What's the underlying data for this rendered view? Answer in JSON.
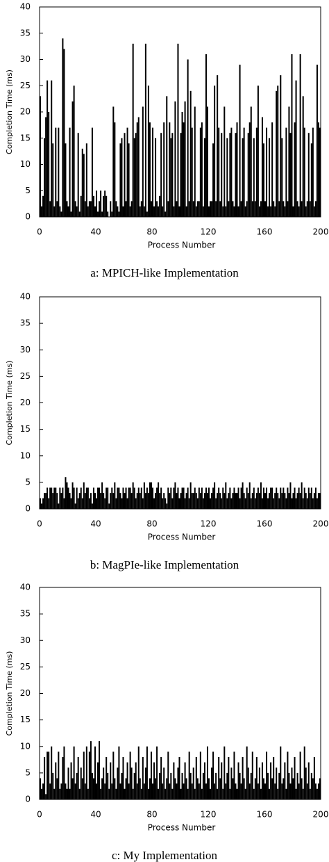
{
  "chart_data": [
    {
      "type": "bar",
      "caption": "a: MPICH-like Implementation",
      "xlabel": "Process Number",
      "ylabel": "Completion Time (ms)",
      "color": "#000000",
      "xlim": [
        0,
        200
      ],
      "xticks": [
        0,
        40,
        80,
        120,
        160,
        200
      ],
      "ylim": [
        0,
        40
      ],
      "yticks": [
        0,
        5,
        10,
        15,
        20,
        25,
        30,
        35,
        40
      ],
      "x": [
        0,
        1,
        2,
        3,
        4,
        5,
        6,
        7,
        8,
        9,
        10,
        11,
        12,
        13,
        14,
        15,
        16,
        17,
        18,
        19,
        20,
        21,
        22,
        23,
        24,
        25,
        26,
        27,
        28,
        29,
        30,
        31,
        32,
        33,
        34,
        35,
        36,
        37,
        38,
        39,
        40,
        41,
        42,
        43,
        44,
        45,
        46,
        47,
        48,
        49,
        50,
        51,
        52,
        53,
        54,
        55,
        56,
        57,
        58,
        59,
        60,
        61,
        62,
        63,
        64,
        65,
        66,
        67,
        68,
        69,
        70,
        71,
        72,
        73,
        74,
        75,
        76,
        77,
        78,
        79,
        80,
        81,
        82,
        83,
        84,
        85,
        86,
        87,
        88,
        89,
        90,
        91,
        92,
        93,
        94,
        95,
        96,
        97,
        98,
        99,
        100,
        101,
        102,
        103,
        104,
        105,
        106,
        107,
        108,
        109,
        110,
        111,
        112,
        113,
        114,
        115,
        116,
        117,
        118,
        119,
        120,
        121,
        122,
        123,
        124,
        125,
        126,
        127,
        128,
        129,
        130,
        131,
        132,
        133,
        134,
        135,
        136,
        137,
        138,
        139,
        140,
        141,
        142,
        143,
        144,
        145,
        146,
        147,
        148,
        149,
        150,
        151,
        152,
        153,
        154,
        155,
        156,
        157,
        158,
        159,
        160,
        161,
        162,
        163,
        164,
        165,
        166,
        167,
        168,
        169,
        170,
        171,
        172,
        173,
        174,
        175,
        176,
        177,
        178,
        179,
        180,
        181,
        182,
        183,
        184,
        185,
        186,
        187,
        188,
        189,
        190,
        191,
        192,
        193,
        194,
        195,
        196,
        197,
        198,
        199
      ],
      "values": [
        23,
        2,
        4,
        15,
        19,
        26,
        20,
        3,
        26,
        14,
        2,
        17,
        3,
        17,
        2,
        1,
        34,
        32,
        14,
        3,
        2,
        17,
        1,
        22,
        25,
        3,
        2,
        16,
        1,
        4,
        13,
        12,
        3,
        14,
        2,
        3,
        3,
        17,
        4,
        2,
        5,
        1,
        3,
        5,
        1,
        4,
        5,
        4,
        1,
        0,
        3,
        1,
        21,
        18,
        3,
        2,
        1,
        14,
        15,
        2,
        16,
        3,
        17,
        14,
        2,
        3,
        33,
        15,
        16,
        18,
        19,
        2,
        3,
        21,
        2,
        33,
        1,
        25,
        18,
        3,
        17,
        2,
        15,
        3,
        2,
        4,
        16,
        2,
        18,
        1,
        23,
        3,
        18,
        15,
        16,
        2,
        22,
        3,
        33,
        2,
        16,
        20,
        18,
        22,
        2,
        30,
        3,
        24,
        17,
        3,
        21,
        2,
        3,
        3,
        17,
        18,
        2,
        15,
        31,
        21,
        2,
        3,
        3,
        14,
        25,
        3,
        27,
        17,
        3,
        16,
        2,
        21,
        2,
        15,
        3,
        16,
        17,
        3,
        2,
        16,
        18,
        2,
        29,
        3,
        15,
        17,
        2,
        3,
        16,
        18,
        21,
        3,
        15,
        3,
        17,
        25,
        2,
        3,
        19,
        14,
        3,
        17,
        2,
        15,
        2,
        18,
        3,
        2,
        24,
        25,
        3,
        27,
        15,
        3,
        2,
        17,
        3,
        21,
        16,
        31,
        2,
        18,
        26,
        3,
        2,
        31,
        3,
        23,
        17,
        2,
        3,
        16,
        3,
        14,
        17,
        2,
        3,
        29,
        18,
        17
      ]
    },
    {
      "type": "bar",
      "caption": "b: MagPIe-like Implementation",
      "xlabel": "Process Number",
      "ylabel": "Completion Time (ms)",
      "color": "#000000",
      "xlim": [
        0,
        200
      ],
      "xticks": [
        0,
        40,
        80,
        120,
        160,
        200
      ],
      "ylim": [
        0,
        40
      ],
      "yticks": [
        0,
        5,
        10,
        15,
        20,
        25,
        30,
        35,
        40
      ],
      "x": [
        0,
        1,
        2,
        3,
        4,
        5,
        6,
        7,
        8,
        9,
        10,
        11,
        12,
        13,
        14,
        15,
        16,
        17,
        18,
        19,
        20,
        21,
        22,
        23,
        24,
        25,
        26,
        27,
        28,
        29,
        30,
        31,
        32,
        33,
        34,
        35,
        36,
        37,
        38,
        39,
        40,
        41,
        42,
        43,
        44,
        45,
        46,
        47,
        48,
        49,
        50,
        51,
        52,
        53,
        54,
        55,
        56,
        57,
        58,
        59,
        60,
        61,
        62,
        63,
        64,
        65,
        66,
        67,
        68,
        69,
        70,
        71,
        72,
        73,
        74,
        75,
        76,
        77,
        78,
        79,
        80,
        81,
        82,
        83,
        84,
        85,
        86,
        87,
        88,
        89,
        90,
        91,
        92,
        93,
        94,
        95,
        96,
        97,
        98,
        99,
        100,
        101,
        102,
        103,
        104,
        105,
        106,
        107,
        108,
        109,
        110,
        111,
        112,
        113,
        114,
        115,
        116,
        117,
        118,
        119,
        120,
        121,
        122,
        123,
        124,
        125,
        126,
        127,
        128,
        129,
        130,
        131,
        132,
        133,
        134,
        135,
        136,
        137,
        138,
        139,
        140,
        141,
        142,
        143,
        144,
        145,
        146,
        147,
        148,
        149,
        150,
        151,
        152,
        153,
        154,
        155,
        156,
        157,
        158,
        159,
        160,
        161,
        162,
        163,
        164,
        165,
        166,
        167,
        168,
        169,
        170,
        171,
        172,
        173,
        174,
        175,
        176,
        177,
        178,
        179,
        180,
        181,
        182,
        183,
        184,
        185,
        186,
        187,
        188,
        189,
        190,
        191,
        192,
        193,
        194,
        195,
        196,
        197,
        198,
        199
      ],
      "values": [
        2,
        1,
        2,
        3,
        3,
        4,
        2,
        4,
        4,
        3,
        4,
        4,
        3,
        1,
        4,
        3,
        4,
        2,
        6,
        5,
        4,
        3,
        2,
        5,
        4,
        1,
        4,
        2,
        3,
        4,
        2,
        5,
        3,
        4,
        4,
        2,
        3,
        1,
        4,
        3,
        2,
        4,
        4,
        3,
        5,
        3,
        2,
        4,
        4,
        1,
        3,
        4,
        3,
        5,
        2,
        4,
        4,
        3,
        2,
        4,
        3,
        4,
        2,
        4,
        4,
        3,
        5,
        4,
        2,
        3,
        4,
        3,
        4,
        2,
        5,
        3,
        4,
        3,
        5,
        5,
        4,
        2,
        3,
        4,
        5,
        3,
        4,
        2,
        3,
        2,
        1,
        4,
        3,
        4,
        2,
        4,
        5,
        3,
        4,
        2,
        3,
        4,
        4,
        2,
        3,
        4,
        2,
        5,
        3,
        3,
        4,
        3,
        2,
        4,
        3,
        4,
        2,
        3,
        4,
        3,
        4,
        2,
        3,
        4,
        5,
        2,
        3,
        4,
        3,
        2,
        4,
        3,
        5,
        2,
        3,
        4,
        2,
        3,
        4,
        3,
        3,
        4,
        2,
        4,
        5,
        3,
        2,
        4,
        3,
        5,
        2,
        3,
        4,
        2,
        3,
        4,
        3,
        5,
        2,
        4,
        3,
        4,
        2,
        3,
        4,
        4,
        2,
        3,
        4,
        3,
        2,
        4,
        3,
        4,
        3,
        2,
        4,
        3,
        5,
        2,
        3,
        4,
        2,
        3,
        4,
        3,
        5,
        2,
        4,
        3,
        2,
        4,
        3,
        4,
        2,
        3,
        4,
        2,
        3,
        3
      ]
    },
    {
      "type": "bar",
      "caption": "c: My Implementation",
      "xlabel": "Process Number",
      "ylabel": "Completion Time (ms)",
      "color": "#000000",
      "xlim": [
        0,
        200
      ],
      "xticks": [
        0,
        40,
        80,
        120,
        160,
        200
      ],
      "ylim": [
        0,
        40
      ],
      "yticks": [
        0,
        5,
        10,
        15,
        20,
        25,
        30,
        35,
        40
      ],
      "x": [
        0,
        1,
        2,
        3,
        4,
        5,
        6,
        7,
        8,
        9,
        10,
        11,
        12,
        13,
        14,
        15,
        16,
        17,
        18,
        19,
        20,
        21,
        22,
        23,
        24,
        25,
        26,
        27,
        28,
        29,
        30,
        31,
        32,
        33,
        34,
        35,
        36,
        37,
        38,
        39,
        40,
        41,
        42,
        43,
        44,
        45,
        46,
        47,
        48,
        49,
        50,
        51,
        52,
        53,
        54,
        55,
        56,
        57,
        58,
        59,
        60,
        61,
        62,
        63,
        64,
        65,
        66,
        67,
        68,
        69,
        70,
        71,
        72,
        73,
        74,
        75,
        76,
        77,
        78,
        79,
        80,
        81,
        82,
        83,
        84,
        85,
        86,
        87,
        88,
        89,
        90,
        91,
        92,
        93,
        94,
        95,
        96,
        97,
        98,
        99,
        100,
        101,
        102,
        103,
        104,
        105,
        106,
        107,
        108,
        109,
        110,
        111,
        112,
        113,
        114,
        115,
        116,
        117,
        118,
        119,
        120,
        121,
        122,
        123,
        124,
        125,
        126,
        127,
        128,
        129,
        130,
        131,
        132,
        133,
        134,
        135,
        136,
        137,
        138,
        139,
        140,
        141,
        142,
        143,
        144,
        145,
        146,
        147,
        148,
        149,
        150,
        151,
        152,
        153,
        154,
        155,
        156,
        157,
        158,
        159,
        160,
        161,
        162,
        163,
        164,
        165,
        166,
        167,
        168,
        169,
        170,
        171,
        172,
        173,
        174,
        175,
        176,
        177,
        178,
        179,
        180,
        181,
        182,
        183,
        184,
        185,
        186,
        187,
        188,
        189,
        190,
        191,
        192,
        193,
        194,
        195,
        196,
        197,
        198,
        199
      ],
      "values": [
        4,
        2,
        3,
        8,
        1,
        9,
        9,
        3,
        10,
        5,
        2,
        7,
        4,
        9,
        2,
        3,
        8,
        10,
        3,
        2,
        6,
        2,
        7,
        4,
        10,
        3,
        5,
        8,
        2,
        6,
        4,
        9,
        3,
        10,
        2,
        9,
        11,
        5,
        4,
        10,
        3,
        7,
        11,
        2,
        4,
        6,
        3,
        8,
        5,
        2,
        7,
        3,
        9,
        4,
        2,
        6,
        10,
        3,
        5,
        8,
        2,
        4,
        7,
        3,
        9,
        6,
        2,
        5,
        7,
        3,
        10,
        4,
        2,
        8,
        3,
        6,
        10,
        2,
        4,
        9,
        3,
        7,
        4,
        10,
        2,
        5,
        8,
        3,
        6,
        2,
        4,
        9,
        3,
        5,
        2,
        7,
        4,
        3,
        6,
        8,
        2,
        5,
        3,
        7,
        4,
        2,
        9,
        5,
        3,
        6,
        2,
        8,
        4,
        3,
        9,
        2,
        5,
        7,
        3,
        10,
        4,
        2,
        6,
        9,
        3,
        5,
        2,
        8,
        4,
        7,
        2,
        10,
        3,
        5,
        8,
        2,
        6,
        4,
        9,
        3,
        2,
        7,
        5,
        3,
        8,
        4,
        2,
        10,
        6,
        3,
        5,
        9,
        2,
        4,
        8,
        3,
        6,
        2,
        7,
        4,
        3,
        9,
        5,
        2,
        7,
        4,
        8,
        3,
        6,
        2,
        5,
        10,
        3,
        4,
        7,
        2,
        9,
        5,
        3,
        6,
        4,
        8,
        2,
        5,
        3,
        9,
        4,
        2,
        10,
        6,
        3,
        7,
        2,
        5,
        4,
        8,
        3,
        2,
        3,
        4
      ]
    }
  ]
}
